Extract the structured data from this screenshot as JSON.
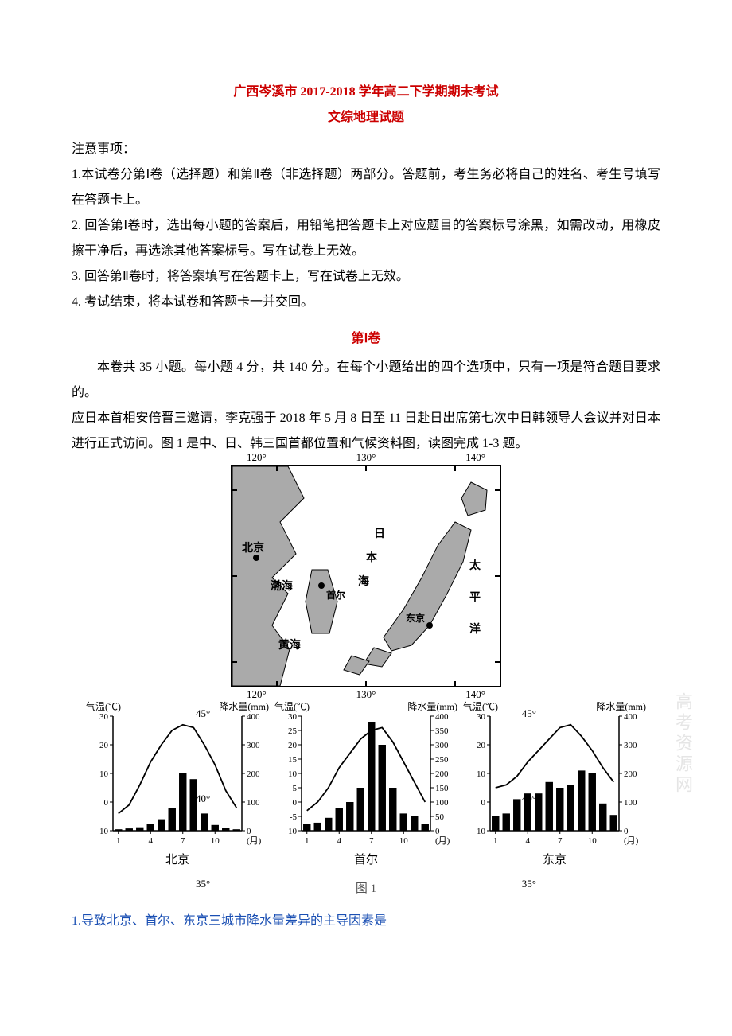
{
  "header": {
    "title": "广西岑溪市 2017-2018 学年高二下学期期末考试",
    "subtitle": "文综地理试题"
  },
  "notice": {
    "heading": "注意事项：",
    "items": [
      "1.本试卷分第Ⅰ卷（选择题）和第Ⅱ卷（非选择题）两部分。答题前，考生务必将自己的姓名、考生号填写在答题卡上。",
      "2. 回答第Ⅰ卷时，选出每小题的答案后，用铅笔把答题卡上对应题目的答案标号涂黑，如需改动，用橡皮擦干净后，再选涂其他答案标号。写在试卷上无效。",
      "3. 回答第Ⅱ卷时，将答案填写在答题卡上，写在试卷上无效。",
      "4. 考试结束，将本试卷和答题卡一并交回。"
    ]
  },
  "section1": {
    "title": "第Ⅰ卷",
    "intro": "本卷共 35 小题。每小题 4 分，共 140 分。在每个小题给出的四个选项中，只有一项是符合题目要求的。",
    "passage": "应日本首相安倍晋三邀请，李克强于 2018 年 5 月 8 日至 11 日赴日出席第七次中日韩领导人会议并对日本进行正式访问。图 1 是中、日、韩三国首都位置和气候资料图，读图完成 1-3 题。"
  },
  "map": {
    "lon_ticks": [
      "120°",
      "130°",
      "140°"
    ],
    "lat_ticks": [
      "45°",
      "40°",
      "35°"
    ],
    "labels": {
      "beijing": "北京",
      "bohai": "渤海",
      "yellow_sea": "黄海",
      "japan_sea_a": "日",
      "japan_sea_b": "本",
      "japan_sea_c": "海",
      "seoul": "首尔",
      "tokyo": "东京",
      "pacific_a": "太",
      "pacific_b": "平",
      "pacific_c": "洋"
    },
    "frame_color": "#000000",
    "land_fill": "#aaaaaa",
    "land_stroke": "#000000"
  },
  "charts": {
    "temp_axis_label": "气温(℃)",
    "precip_axis_label": "降水量(mm)",
    "month_label": "(月)",
    "x_ticks": [
      1,
      4,
      7,
      10
    ],
    "beijing": {
      "city": "北京",
      "temp_ticks": [
        -10,
        0,
        10,
        20,
        30
      ],
      "precip_ticks": [
        0,
        100,
        200,
        300,
        400
      ],
      "precip_bars": [
        5,
        8,
        12,
        25,
        40,
        80,
        200,
        180,
        60,
        20,
        10,
        5
      ],
      "temp_vals": [
        -4,
        -1,
        6,
        14,
        20,
        25,
        27,
        26,
        20,
        13,
        4,
        -2
      ],
      "bar_color": "#000000",
      "line_color": "#000000",
      "axis_color": "#000000"
    },
    "seoul": {
      "city": "首尔",
      "temp_ticks": [
        -10,
        -5,
        0,
        5,
        10,
        15,
        20,
        25,
        30
      ],
      "precip_ticks": [
        0,
        50,
        100,
        150,
        200,
        250,
        300,
        350,
        400
      ],
      "precip_bars": [
        25,
        28,
        45,
        80,
        100,
        150,
        380,
        300,
        150,
        60,
        50,
        25
      ],
      "temp_vals": [
        -3,
        0,
        5,
        12,
        17,
        22,
        25,
        26,
        21,
        14,
        7,
        0
      ],
      "bar_color": "#000000",
      "line_color": "#000000",
      "axis_color": "#000000"
    },
    "tokyo": {
      "city": "东京",
      "temp_ticks": [
        -10,
        0,
        10,
        20,
        30
      ],
      "precip_ticks": [
        0,
        100,
        200,
        300,
        400
      ],
      "precip_bars": [
        50,
        60,
        110,
        130,
        130,
        170,
        150,
        160,
        210,
        200,
        95,
        55
      ],
      "temp_vals": [
        5,
        6,
        9,
        14,
        18,
        22,
        26,
        27,
        23,
        18,
        12,
        7
      ],
      "bar_color": "#000000",
      "line_color": "#000000",
      "axis_color": "#000000"
    }
  },
  "figure_caption": "图 1",
  "question1": "1.导致北京、首尔、东京三城市降水量差异的主导因素是",
  "watermark": "高考资源网"
}
